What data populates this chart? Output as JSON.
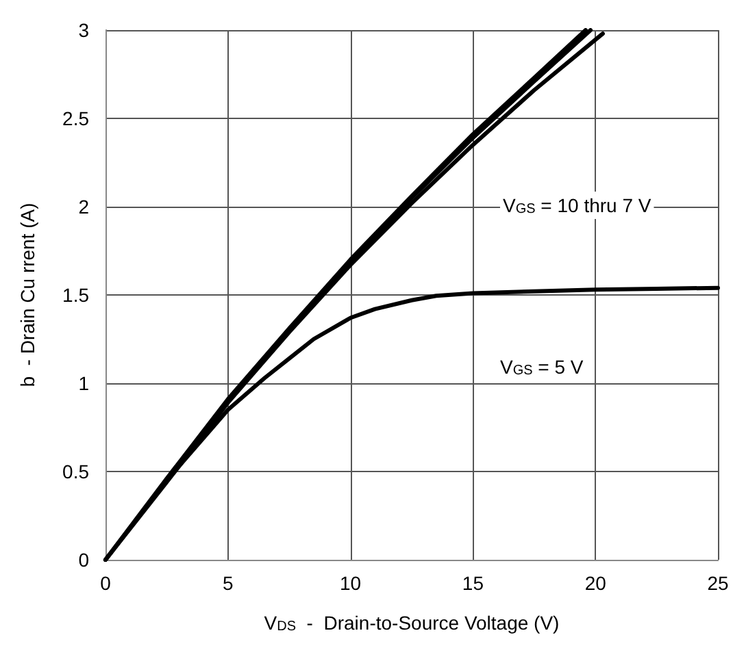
{
  "chart_data": {
    "type": "line",
    "xlabel": "V$_{DS}$  -  Drain-to-Source Voltage (V)",
    "ylabel": "b  - Drain Cu rrent (A)",
    "xlim": [
      0,
      25
    ],
    "xticks": [
      0,
      5,
      10,
      15,
      20,
      25
    ],
    "ylim": [
      0,
      3
    ],
    "yticks": [
      0,
      0.5,
      1,
      1.5,
      2,
      2.5,
      3
    ],
    "grid": true,
    "marker": "none",
    "line_style": "solid",
    "series": [
      {
        "color": "#000000",
        "x": [
          0,
          2.5,
          5,
          7.5,
          10,
          12.5,
          15,
          17.5,
          19.6
        ],
        "values": [
          0,
          0.46,
          0.91,
          1.31,
          1.7,
          2.06,
          2.41,
          2.73,
          3.0
        ]
      },
      {
        "color": "#000000",
        "x": [
          0,
          2.5,
          5,
          7.5,
          10,
          12.5,
          15,
          17.5,
          19.8
        ],
        "values": [
          0,
          0.45,
          0.9,
          1.3,
          1.69,
          2.05,
          2.39,
          2.71,
          3.0
        ]
      },
      {
        "color": "#000000",
        "x": [
          0,
          2.5,
          5,
          7.5,
          10,
          12.5,
          15,
          17.5,
          20.3
        ],
        "values": [
          0,
          0.44,
          0.89,
          1.29,
          1.67,
          2.02,
          2.35,
          2.66,
          2.98
        ]
      },
      {
        "color": "#000000",
        "x": [
          0,
          2.5,
          5,
          6.5,
          7.5,
          8.5,
          10,
          11,
          12.5,
          13.5,
          15,
          17.5,
          20,
          22.5,
          25
        ],
        "values": [
          0,
          0.45,
          0.85,
          1.03,
          1.14,
          1.25,
          1.37,
          1.42,
          1.47,
          1.495,
          1.51,
          1.52,
          1.53,
          1.535,
          1.54
        ]
      }
    ],
    "annotations": [
      "V$_{GS}$ = 10 thru 7 V",
      "V$_{GS}$ = 5 V"
    ]
  }
}
